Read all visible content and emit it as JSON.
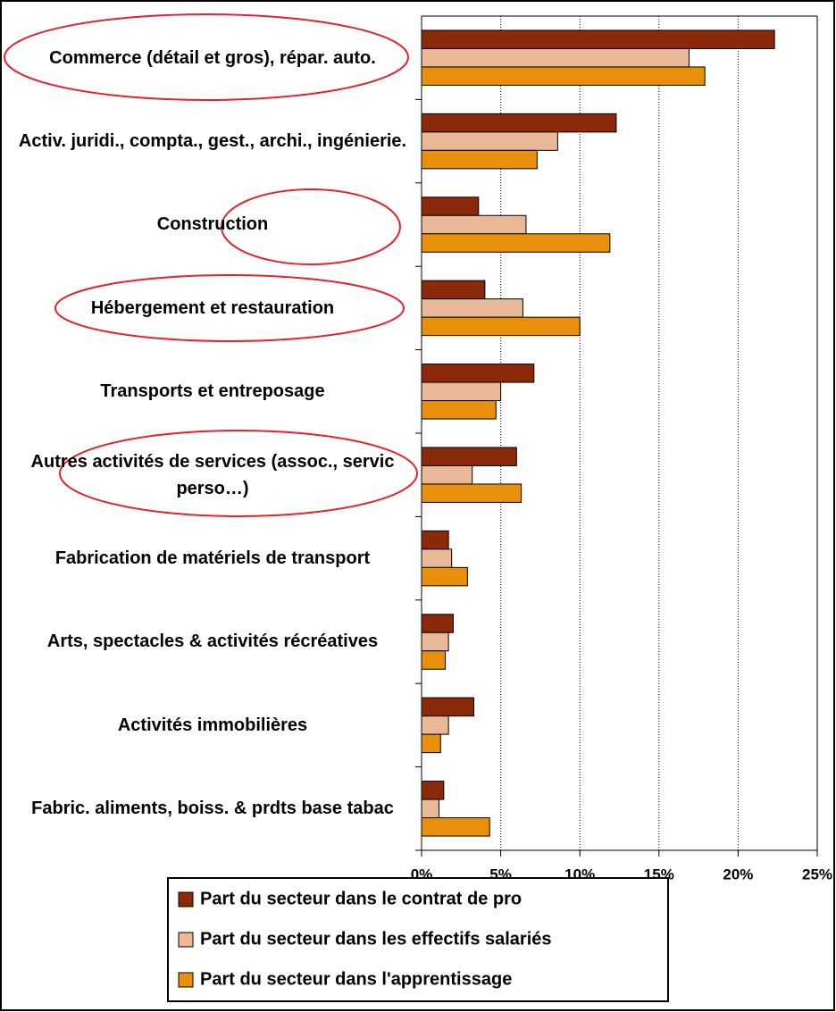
{
  "chart_data": {
    "type": "hbar",
    "categories": [
      "Commerce (détail et gros), répar. auto.",
      "Activ. juridi., compta., gest., archi., ingénierie.",
      "Construction",
      "Hébergement et restauration",
      "Transports et entreposage",
      "Autres activités de services (assoc., servic perso…)",
      "Fabrication de matériels de transport",
      "Arts, spectacles & activités récréatives",
      "Activités immobilières",
      "Fabric. aliments, boiss. & prdts base tabac"
    ],
    "series": [
      {
        "name": "Part du secteur dans le contrat de pro",
        "color": "#8b2a0a",
        "values": [
          22.3,
          12.3,
          3.6,
          4.0,
          7.1,
          6.0,
          1.7,
          2.0,
          3.3,
          1.4
        ]
      },
      {
        "name": "Part du secteur dans les effectifs salariés",
        "color": "#e9b896",
        "values": [
          16.9,
          8.6,
          6.6,
          6.4,
          5.0,
          3.2,
          1.9,
          1.7,
          1.7,
          1.1
        ]
      },
      {
        "name": "Part du secteur dans l'apprentissage",
        "color": "#e8900c",
        "values": [
          17.9,
          7.3,
          11.9,
          10.0,
          4.7,
          6.3,
          2.9,
          1.5,
          1.2,
          4.3
        ]
      }
    ],
    "xlim": [
      0,
      25
    ],
    "xticks": [
      {
        "value": 0,
        "label": "0%"
      },
      {
        "value": 5,
        "label": "5%"
      },
      {
        "value": 10,
        "label": "10%"
      },
      {
        "value": 15,
        "label": "15%"
      },
      {
        "value": 20,
        "label": "20%"
      },
      {
        "value": 25,
        "label": "25%"
      }
    ],
    "grid": true,
    "legend": "bottom"
  }
}
